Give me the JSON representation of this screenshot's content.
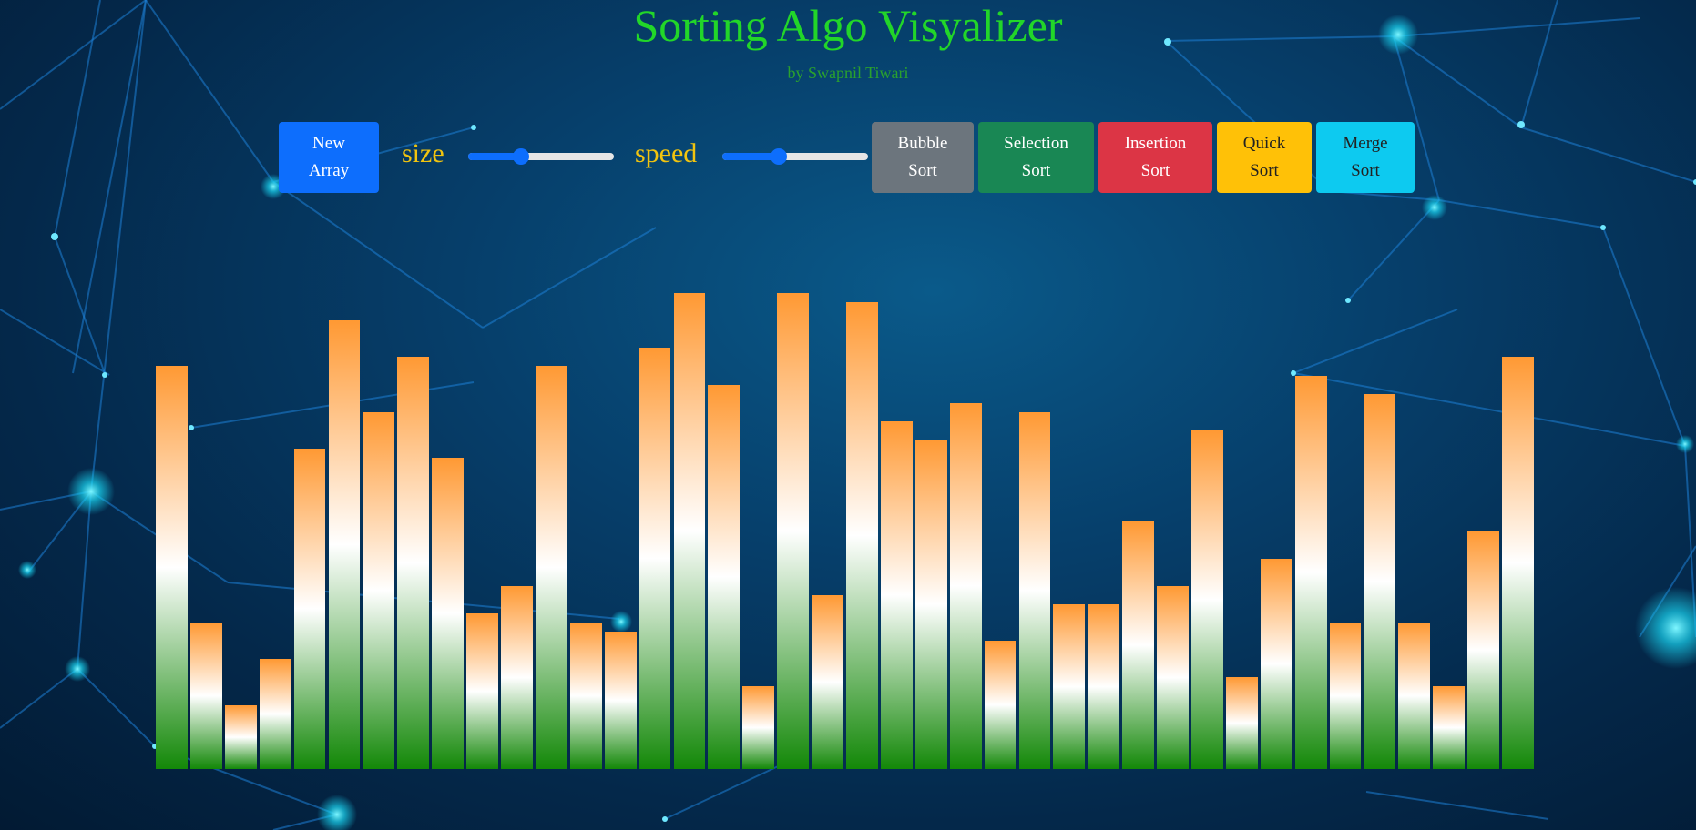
{
  "header": {
    "title": "Sorting Algo Visyalizer",
    "subtitle": "by Swapnil Tiwari"
  },
  "controls": {
    "new_array": {
      "line1": "New",
      "line2": "Array",
      "color": "#0d6efd"
    },
    "size": {
      "label": "size",
      "value": 0.36
    },
    "speed": {
      "label": "speed",
      "value": 0.39
    },
    "bubble": {
      "line1": "Bubble",
      "line2": "Sort",
      "color": "#6c757d"
    },
    "selection": {
      "line1": "Selection",
      "line2": "Sort",
      "color": "#198754"
    },
    "insertion": {
      "line1": "Insertion",
      "line2": "Sort",
      "color": "#dc3545"
    },
    "quick": {
      "line1": "Quick",
      "line2": "Sort",
      "color": "#ffc107"
    },
    "merge": {
      "line1": "Merge",
      "line2": "Sort",
      "color": "#0dcaf0"
    }
  },
  "array": {
    "max": 520,
    "values": [
      440,
      160,
      70,
      120,
      350,
      490,
      390,
      450,
      340,
      170,
      200,
      440,
      160,
      150,
      460,
      520,
      420,
      90,
      520,
      190,
      510,
      380,
      360,
      400,
      140,
      390,
      180,
      180,
      270,
      200,
      370,
      100,
      230,
      430,
      160,
      410,
      160,
      90,
      260,
      450
    ],
    "colors": {
      "top": "#ff9933",
      "middle": "#ffffff",
      "bottom": "#138808"
    }
  }
}
